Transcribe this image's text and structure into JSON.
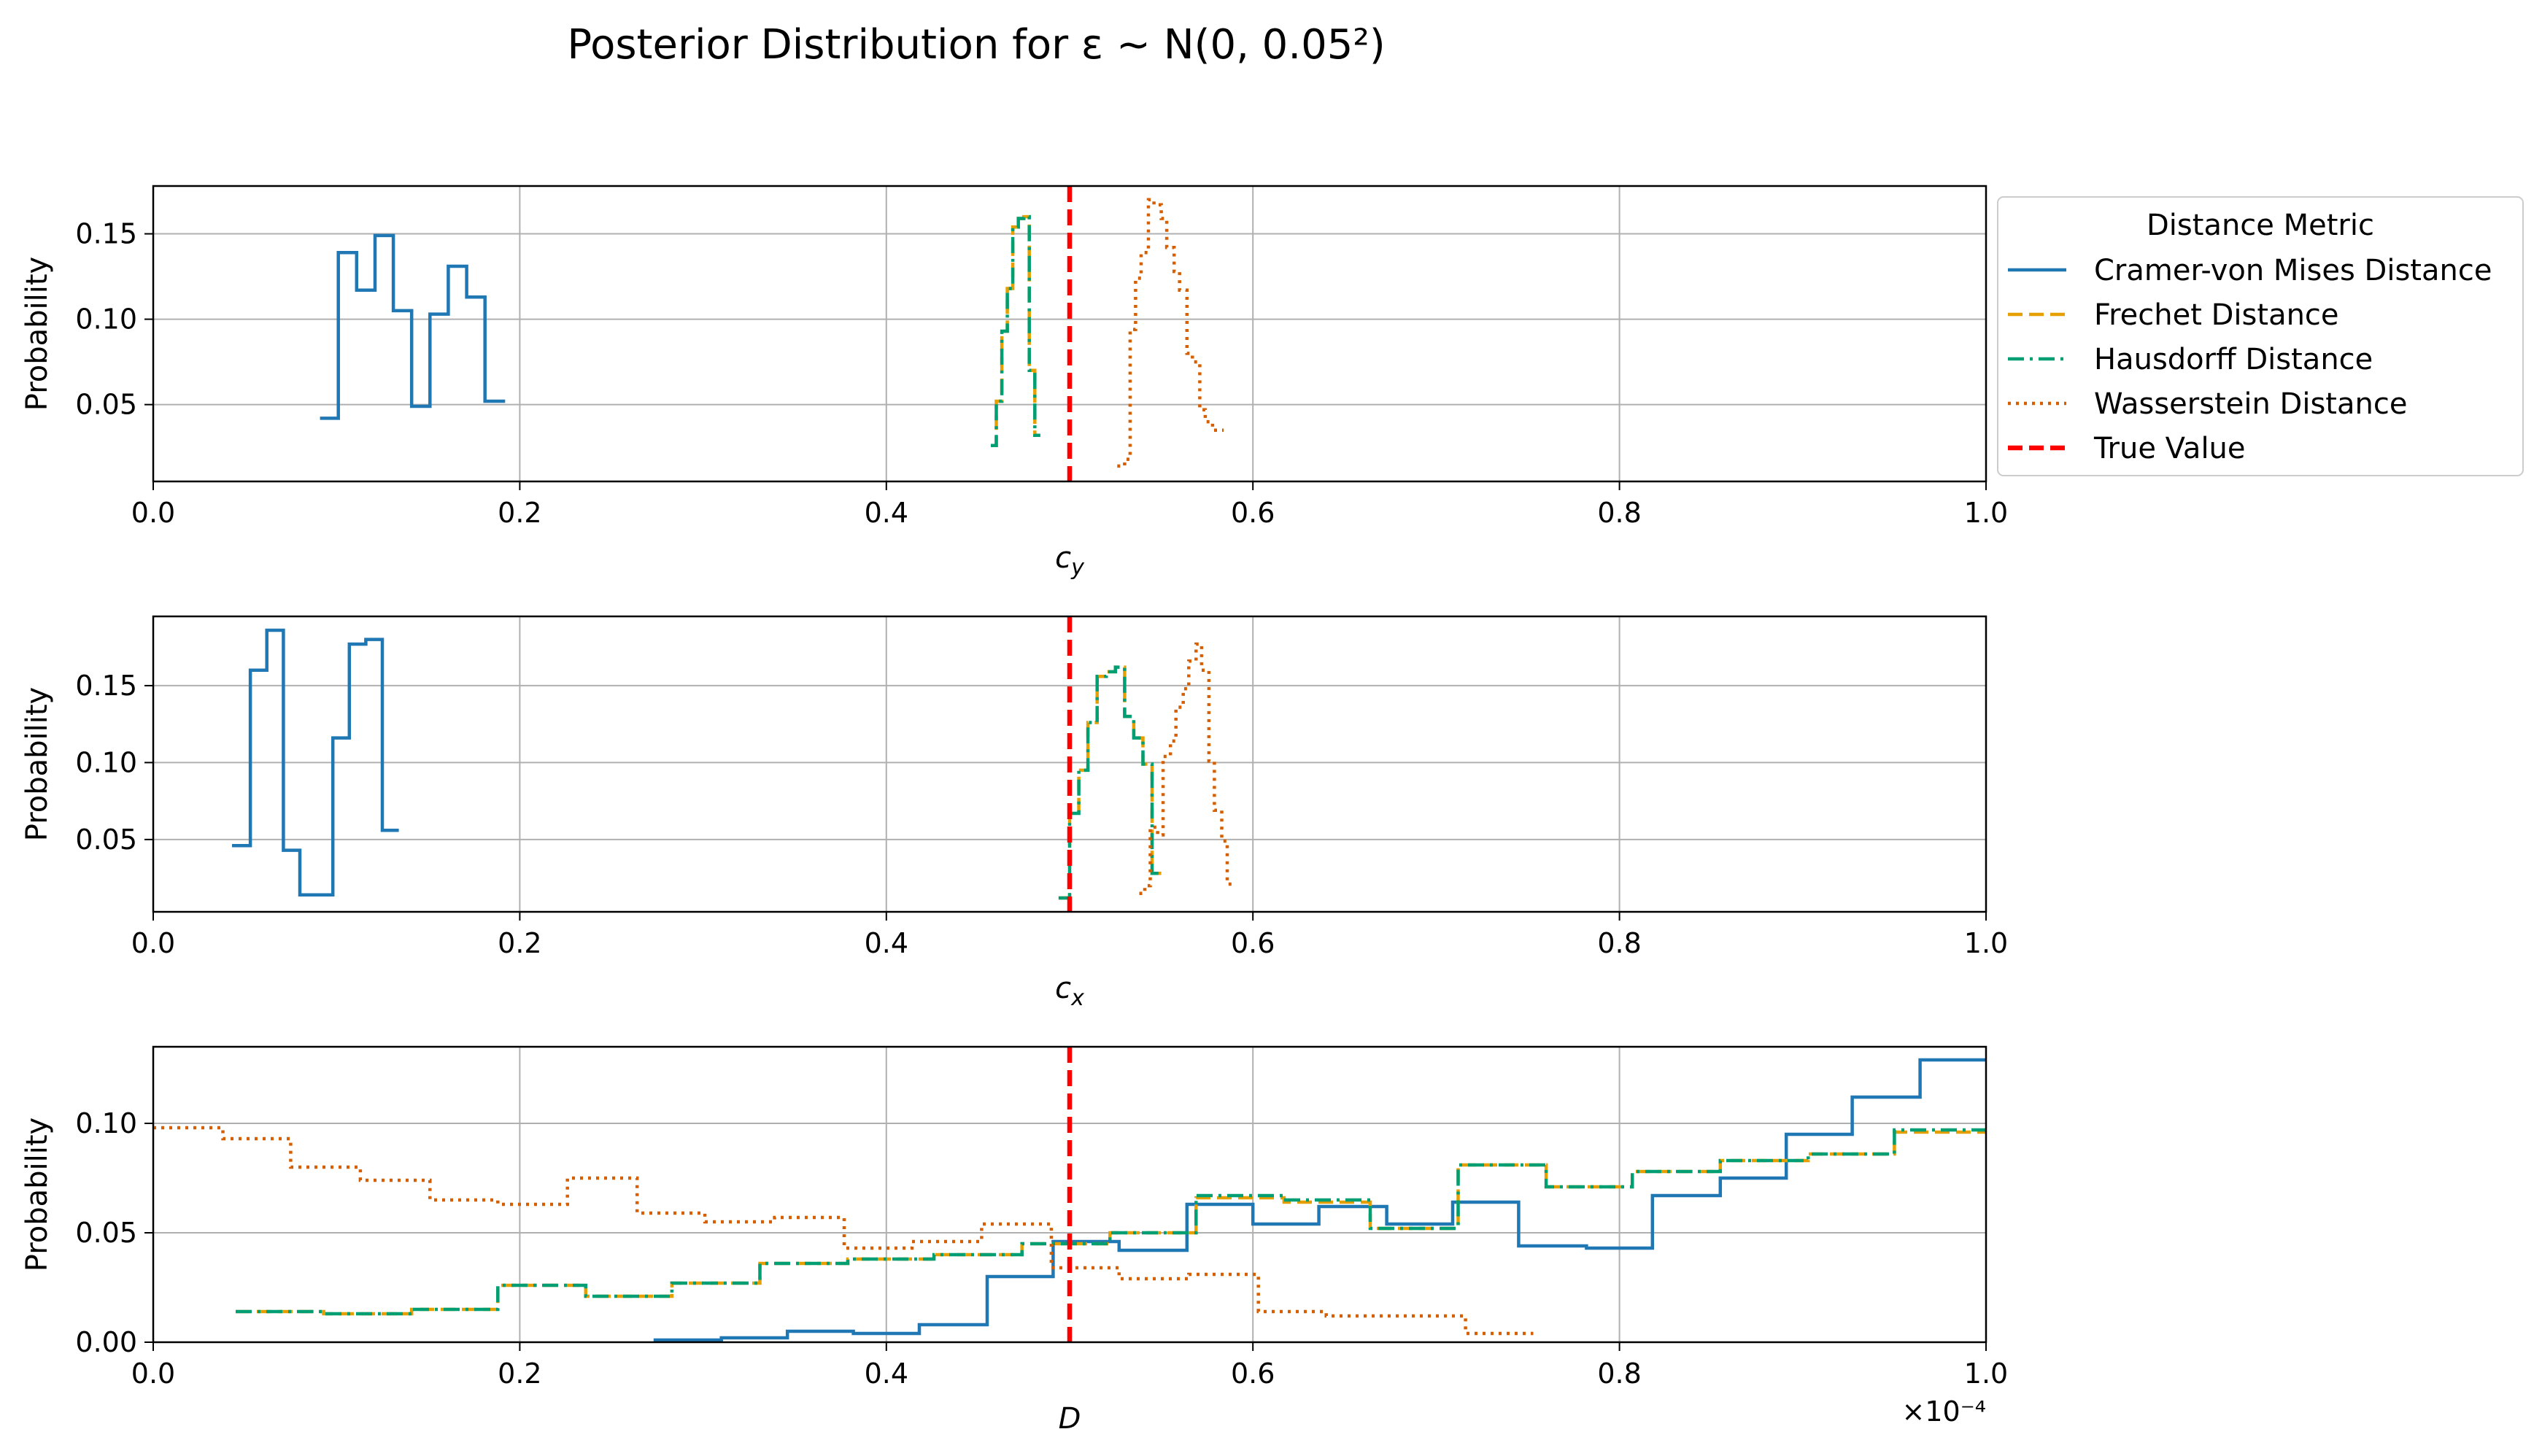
{
  "title": "Posterior Distribution for ε ~ N(0, 0.05²)",
  "legend": {
    "title": "Distance Metric",
    "placement": "right of top panel",
    "entries": [
      {
        "label": "Cramer-von Mises Distance",
        "color": "#1f77b4",
        "style": "solid"
      },
      {
        "label": "Frechet Distance",
        "color": "#e69f00",
        "style": "dashed"
      },
      {
        "label": "Hausdorff Distance",
        "color": "#009e73",
        "style": "dashdot"
      },
      {
        "label": "Wasserstein Distance",
        "color": "#d55e00",
        "style": "dotted"
      },
      {
        "label": "True Value",
        "color": "#ff0000",
        "style": "dashed"
      }
    ]
  },
  "chart_data": [
    {
      "type": "line",
      "step": true,
      "xlabel": "c_y",
      "ylabel": "Probability",
      "xlim": [
        0.0,
        1.0
      ],
      "ylim": [
        0.005,
        0.178
      ],
      "grid": true,
      "xticks": [
        "0.0",
        "0.2",
        "0.4",
        "0.6",
        "0.8",
        "1.0"
      ],
      "yticks": [
        0.05,
        0.1,
        0.15
      ],
      "ytick_labels": [
        "0.05",
        "0.10",
        "0.15"
      ],
      "true_value": 0.5,
      "series": [
        {
          "name": "Cramer-von Mises Distance",
          "x": [
            0.091,
            0.101,
            0.101,
            0.111,
            0.111,
            0.121,
            0.121,
            0.131,
            0.131,
            0.141,
            0.141,
            0.151,
            0.151,
            0.161,
            0.161,
            0.171,
            0.171,
            0.181,
            0.181,
            0.192
          ],
          "y": [
            0.042,
            0.042,
            0.139,
            0.139,
            0.117,
            0.117,
            0.149,
            0.149,
            0.105,
            0.105,
            0.049,
            0.049,
            0.103,
            0.103,
            0.131,
            0.131,
            0.113,
            0.113,
            0.052,
            0.052
          ]
        },
        {
          "name": "Frechet Distance",
          "x": [
            0.457,
            0.46,
            0.46,
            0.463,
            0.463,
            0.466,
            0.466,
            0.469,
            0.469,
            0.472,
            0.472,
            0.475,
            0.475,
            0.478,
            0.478,
            0.481,
            0.481,
            0.484
          ],
          "y": [
            0.026,
            0.026,
            0.052,
            0.052,
            0.093,
            0.093,
            0.118,
            0.118,
            0.154,
            0.154,
            0.159,
            0.159,
            0.16,
            0.16,
            0.07,
            0.07,
            0.032,
            0.032
          ]
        },
        {
          "name": "Hausdorff Distance",
          "x": [
            0.457,
            0.46,
            0.46,
            0.463,
            0.463,
            0.466,
            0.466,
            0.469,
            0.469,
            0.472,
            0.472,
            0.475,
            0.475,
            0.478,
            0.478,
            0.481,
            0.481,
            0.484
          ],
          "y": [
            0.026,
            0.026,
            0.052,
            0.052,
            0.093,
            0.093,
            0.118,
            0.118,
            0.154,
            0.154,
            0.159,
            0.159,
            0.16,
            0.16,
            0.07,
            0.07,
            0.032,
            0.032
          ]
        },
        {
          "name": "Wasserstein Distance",
          "x": [
            0.526,
            0.53,
            0.53,
            0.533,
            0.533,
            0.536,
            0.536,
            0.539,
            0.539,
            0.543,
            0.543,
            0.546,
            0.546,
            0.55,
            0.55,
            0.553,
            0.553,
            0.557,
            0.557,
            0.56,
            0.56,
            0.564,
            0.564,
            0.567,
            0.567,
            0.571,
            0.571,
            0.574,
            0.574,
            0.578,
            0.578,
            0.584
          ],
          "y": [
            0.014,
            0.014,
            0.018,
            0.018,
            0.094,
            0.094,
            0.124,
            0.124,
            0.139,
            0.139,
            0.17,
            0.17,
            0.167,
            0.167,
            0.159,
            0.159,
            0.142,
            0.142,
            0.128,
            0.128,
            0.117,
            0.117,
            0.08,
            0.08,
            0.075,
            0.075,
            0.047,
            0.047,
            0.04,
            0.04,
            0.035,
            0.035
          ]
        }
      ]
    },
    {
      "type": "line",
      "step": true,
      "xlabel": "c_x",
      "ylabel": "Probability",
      "xlim": [
        0.0,
        1.0
      ],
      "ylim": [
        0.003,
        0.195
      ],
      "grid": true,
      "xticks": [
        "0.0",
        "0.2",
        "0.4",
        "0.6",
        "0.8",
        "1.0"
      ],
      "yticks": [
        0.05,
        0.1,
        0.15
      ],
      "ytick_labels": [
        "0.05",
        "0.10",
        "0.15"
      ],
      "true_value": 0.5,
      "series": [
        {
          "name": "Cramer-von Mises Distance",
          "x": [
            0.043,
            0.053,
            0.053,
            0.062,
            0.062,
            0.071,
            0.071,
            0.08,
            0.08,
            0.098,
            0.098,
            0.107,
            0.107,
            0.116,
            0.116,
            0.125,
            0.125,
            0.134
          ],
          "y": [
            0.046,
            0.046,
            0.16,
            0.16,
            0.186,
            0.186,
            0.043,
            0.043,
            0.014,
            0.014,
            0.116,
            0.116,
            0.177,
            0.177,
            0.18,
            0.18,
            0.056,
            0.056
          ]
        },
        {
          "name": "Frechet Distance",
          "x": [
            0.494,
            0.5,
            0.5,
            0.505,
            0.505,
            0.51,
            0.51,
            0.515,
            0.515,
            0.52,
            0.52,
            0.525,
            0.525,
            0.53,
            0.53,
            0.535,
            0.535,
            0.54,
            0.54,
            0.545,
            0.545,
            0.55
          ],
          "y": [
            0.012,
            0.012,
            0.067,
            0.067,
            0.095,
            0.095,
            0.126,
            0.126,
            0.156,
            0.156,
            0.159,
            0.159,
            0.162,
            0.162,
            0.13,
            0.13,
            0.116,
            0.116,
            0.099,
            0.099,
            0.028,
            0.028
          ]
        },
        {
          "name": "Hausdorff Distance",
          "x": [
            0.494,
            0.5,
            0.5,
            0.505,
            0.505,
            0.51,
            0.51,
            0.515,
            0.515,
            0.52,
            0.52,
            0.525,
            0.525,
            0.53,
            0.53,
            0.535,
            0.535,
            0.54,
            0.54,
            0.545,
            0.545,
            0.55
          ],
          "y": [
            0.012,
            0.012,
            0.067,
            0.067,
            0.095,
            0.095,
            0.126,
            0.126,
            0.156,
            0.156,
            0.159,
            0.159,
            0.162,
            0.162,
            0.13,
            0.13,
            0.116,
            0.116,
            0.099,
            0.099,
            0.028,
            0.028
          ]
        },
        {
          "name": "Wasserstein Distance",
          "x": [
            0.538,
            0.541,
            0.541,
            0.544,
            0.544,
            0.548,
            0.548,
            0.551,
            0.551,
            0.555,
            0.555,
            0.558,
            0.558,
            0.562,
            0.562,
            0.565,
            0.565,
            0.569,
            0.569,
            0.572,
            0.572,
            0.576,
            0.576,
            0.579,
            0.579,
            0.583,
            0.583,
            0.586,
            0.586,
            0.589
          ],
          "y": [
            0.015,
            0.015,
            0.02,
            0.02,
            0.058,
            0.058,
            0.053,
            0.053,
            0.104,
            0.104,
            0.114,
            0.114,
            0.136,
            0.136,
            0.148,
            0.148,
            0.166,
            0.166,
            0.177,
            0.177,
            0.16,
            0.16,
            0.101,
            0.101,
            0.069,
            0.069,
            0.049,
            0.049,
            0.021,
            0.021
          ]
        }
      ]
    },
    {
      "type": "line",
      "step": true,
      "xlabel": "D",
      "ylabel": "Probability",
      "xlim": [
        0.0,
        1.0
      ],
      "ylim": [
        0.0,
        0.135
      ],
      "x_multiplier": "×10⁻⁴",
      "grid": true,
      "xticks": [
        "0.0",
        "0.2",
        "0.4",
        "0.6",
        "0.8",
        "1.0"
      ],
      "yticks": [
        0.0,
        0.05,
        0.1
      ],
      "ytick_labels": [
        "0.00",
        "0.05",
        "0.10"
      ],
      "true_value": 0.5,
      "series": [
        {
          "name": "Cramer-von Mises Distance",
          "x": [
            0.273,
            0.31,
            0.31,
            0.346,
            0.346,
            0.382,
            0.382,
            0.418,
            0.418,
            0.455,
            0.455,
            0.491,
            0.491,
            0.527,
            0.527,
            0.564,
            0.564,
            0.6,
            0.6,
            0.636,
            0.636,
            0.673,
            0.673,
            0.709,
            0.709,
            0.745,
            0.745,
            0.782,
            0.782,
            0.818,
            0.818,
            0.855,
            0.855,
            0.891,
            0.891,
            0.927,
            0.927,
            0.964,
            0.964,
            1.0
          ],
          "y": [
            0.001,
            0.001,
            0.002,
            0.002,
            0.005,
            0.005,
            0.004,
            0.004,
            0.008,
            0.008,
            0.03,
            0.03,
            0.046,
            0.046,
            0.042,
            0.042,
            0.063,
            0.063,
            0.054,
            0.054,
            0.062,
            0.062,
            0.054,
            0.054,
            0.064,
            0.064,
            0.044,
            0.044,
            0.043,
            0.043,
            0.067,
            0.067,
            0.075,
            0.075,
            0.095,
            0.095,
            0.112,
            0.112,
            0.129,
            0.129
          ]
        },
        {
          "name": "Frechet Distance",
          "x": [
            0.045,
            0.093,
            0.093,
            0.141,
            0.141,
            0.188,
            0.188,
            0.236,
            0.236,
            0.283,
            0.283,
            0.331,
            0.331,
            0.379,
            0.379,
            0.426,
            0.426,
            0.474,
            0.474,
            0.522,
            0.522,
            0.569,
            0.569,
            0.617,
            0.617,
            0.664,
            0.664,
            0.712,
            0.712,
            0.76,
            0.76,
            0.807,
            0.807,
            0.855,
            0.855,
            0.903,
            0.903,
            0.95,
            0.95,
            1.0
          ],
          "y": [
            0.014,
            0.014,
            0.013,
            0.013,
            0.015,
            0.015,
            0.026,
            0.026,
            0.021,
            0.021,
            0.027,
            0.027,
            0.036,
            0.036,
            0.038,
            0.038,
            0.04,
            0.04,
            0.045,
            0.045,
            0.05,
            0.05,
            0.066,
            0.066,
            0.064,
            0.064,
            0.052,
            0.052,
            0.081,
            0.081,
            0.071,
            0.071,
            0.078,
            0.078,
            0.083,
            0.083,
            0.086,
            0.086,
            0.096,
            0.096
          ]
        },
        {
          "name": "Hausdorff Distance",
          "x": [
            0.045,
            0.093,
            0.093,
            0.141,
            0.141,
            0.188,
            0.188,
            0.236,
            0.236,
            0.283,
            0.283,
            0.331,
            0.331,
            0.379,
            0.379,
            0.426,
            0.426,
            0.474,
            0.474,
            0.522,
            0.522,
            0.569,
            0.569,
            0.617,
            0.617,
            0.664,
            0.664,
            0.712,
            0.712,
            0.76,
            0.76,
            0.807,
            0.807,
            0.855,
            0.855,
            0.903,
            0.903,
            0.95,
            0.95,
            1.0
          ],
          "y": [
            0.014,
            0.014,
            0.013,
            0.013,
            0.015,
            0.015,
            0.026,
            0.026,
            0.021,
            0.021,
            0.027,
            0.027,
            0.036,
            0.036,
            0.038,
            0.038,
            0.04,
            0.04,
            0.045,
            0.045,
            0.05,
            0.05,
            0.067,
            0.067,
            0.065,
            0.065,
            0.052,
            0.052,
            0.081,
            0.081,
            0.071,
            0.071,
            0.078,
            0.078,
            0.083,
            0.083,
            0.086,
            0.086,
            0.097,
            0.097
          ]
        },
        {
          "name": "Wasserstein Distance",
          "x": [
            0.0,
            0.038,
            0.038,
            0.075,
            0.075,
            0.113,
            0.113,
            0.151,
            0.151,
            0.188,
            0.188,
            0.226,
            0.226,
            0.264,
            0.264,
            0.301,
            0.301,
            0.339,
            0.339,
            0.377,
            0.377,
            0.414,
            0.414,
            0.452,
            0.452,
            0.49,
            0.49,
            0.527,
            0.527,
            0.565,
            0.565,
            0.603,
            0.603,
            0.64,
            0.64,
            0.678,
            0.678,
            0.716,
            0.716,
            0.753
          ],
          "y": [
            0.098,
            0.098,
            0.093,
            0.093,
            0.08,
            0.08,
            0.074,
            0.074,
            0.065,
            0.065,
            0.063,
            0.063,
            0.075,
            0.075,
            0.059,
            0.059,
            0.055,
            0.055,
            0.057,
            0.057,
            0.043,
            0.043,
            0.046,
            0.046,
            0.054,
            0.054,
            0.034,
            0.034,
            0.029,
            0.029,
            0.031,
            0.031,
            0.014,
            0.014,
            0.012,
            0.012,
            0.012,
            0.012,
            0.004,
            0.004
          ]
        }
      ]
    }
  ]
}
